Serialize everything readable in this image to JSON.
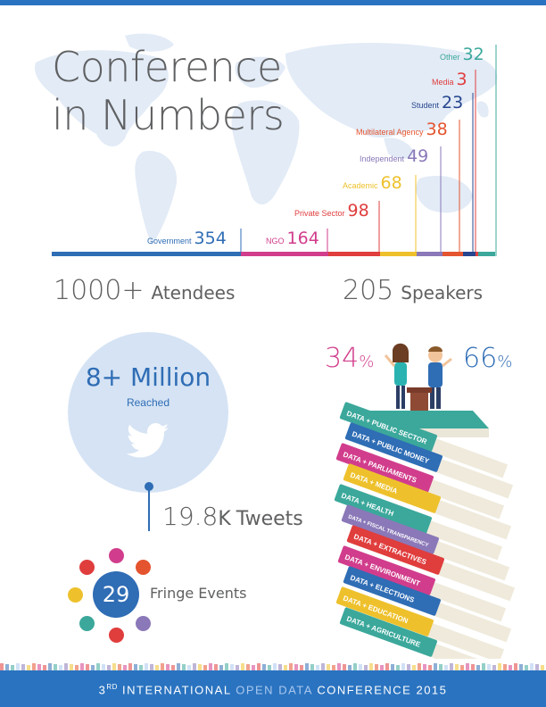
{
  "title": {
    "line1": "Conference",
    "line2": "in Numbers"
  },
  "categories": [
    {
      "id": "other",
      "label": "Other",
      "value": "32",
      "color": "#3ba89b"
    },
    {
      "id": "media",
      "label": "Media",
      "value": "3",
      "color": "#e03d3d"
    },
    {
      "id": "student",
      "label": "Student",
      "value": "23",
      "color": "#27458f"
    },
    {
      "id": "multilateral",
      "label": "Multilateral Agency",
      "value": "38",
      "color": "#e4542f"
    },
    {
      "id": "independent",
      "label": "Independent",
      "value": "49",
      "color": "#8a78b8"
    },
    {
      "id": "academic",
      "label": "Academic",
      "value": "68",
      "color": "#eec12c"
    },
    {
      "id": "private",
      "label": "Private Sector",
      "value": "98",
      "color": "#e03d3d"
    },
    {
      "id": "ngo",
      "label": "NGO",
      "value": "164",
      "color": "#d13d8c"
    },
    {
      "id": "government",
      "label": "Government",
      "value": "354",
      "color": "#2f6db5"
    }
  ],
  "stats": {
    "attendees": {
      "number": "1000+",
      "label": "Atendees"
    },
    "speakers": {
      "number": "205",
      "label": "Speakers"
    }
  },
  "twitter": {
    "reach_number": "8+ Million",
    "reach_label": "Reached",
    "tweets_number": "19.8",
    "tweets_suffix": "K",
    "tweets_label": "Tweets"
  },
  "fringe": {
    "number": "29",
    "label": "Fringe Events"
  },
  "gender": {
    "female": {
      "value": "34",
      "unit": "%",
      "color": "#d13d8c"
    },
    "male": {
      "value": "66",
      "unit": "%",
      "color": "#2f6db5"
    }
  },
  "books": [
    "DATA + PUBLIC SECTOR",
    "DATA + PUBLIC MONEY",
    "DATA + PARLIAMENTS",
    "DATA + MEDIA",
    "DATA + HEALTH",
    "DATA + FISCAL TRANSPARENCY",
    "DATA + EXTRACTIVES",
    "DATA + ENVIRONMENT",
    "DATA + ELECTIONS",
    "DATA + EDUCATION",
    "DATA + AGRICULTURE"
  ],
  "footer": {
    "ordinal": "3",
    "ordinal_suffix": "RD",
    "word1": "INTERNATIONAL",
    "word2": "OPEN",
    "word3": "DATA",
    "word4": "CONFERENCE 2015"
  },
  "colors": {
    "brand_blue": "#2a73c0",
    "text_gray": "#5f6062",
    "light_blue": "#d5e3f4"
  }
}
